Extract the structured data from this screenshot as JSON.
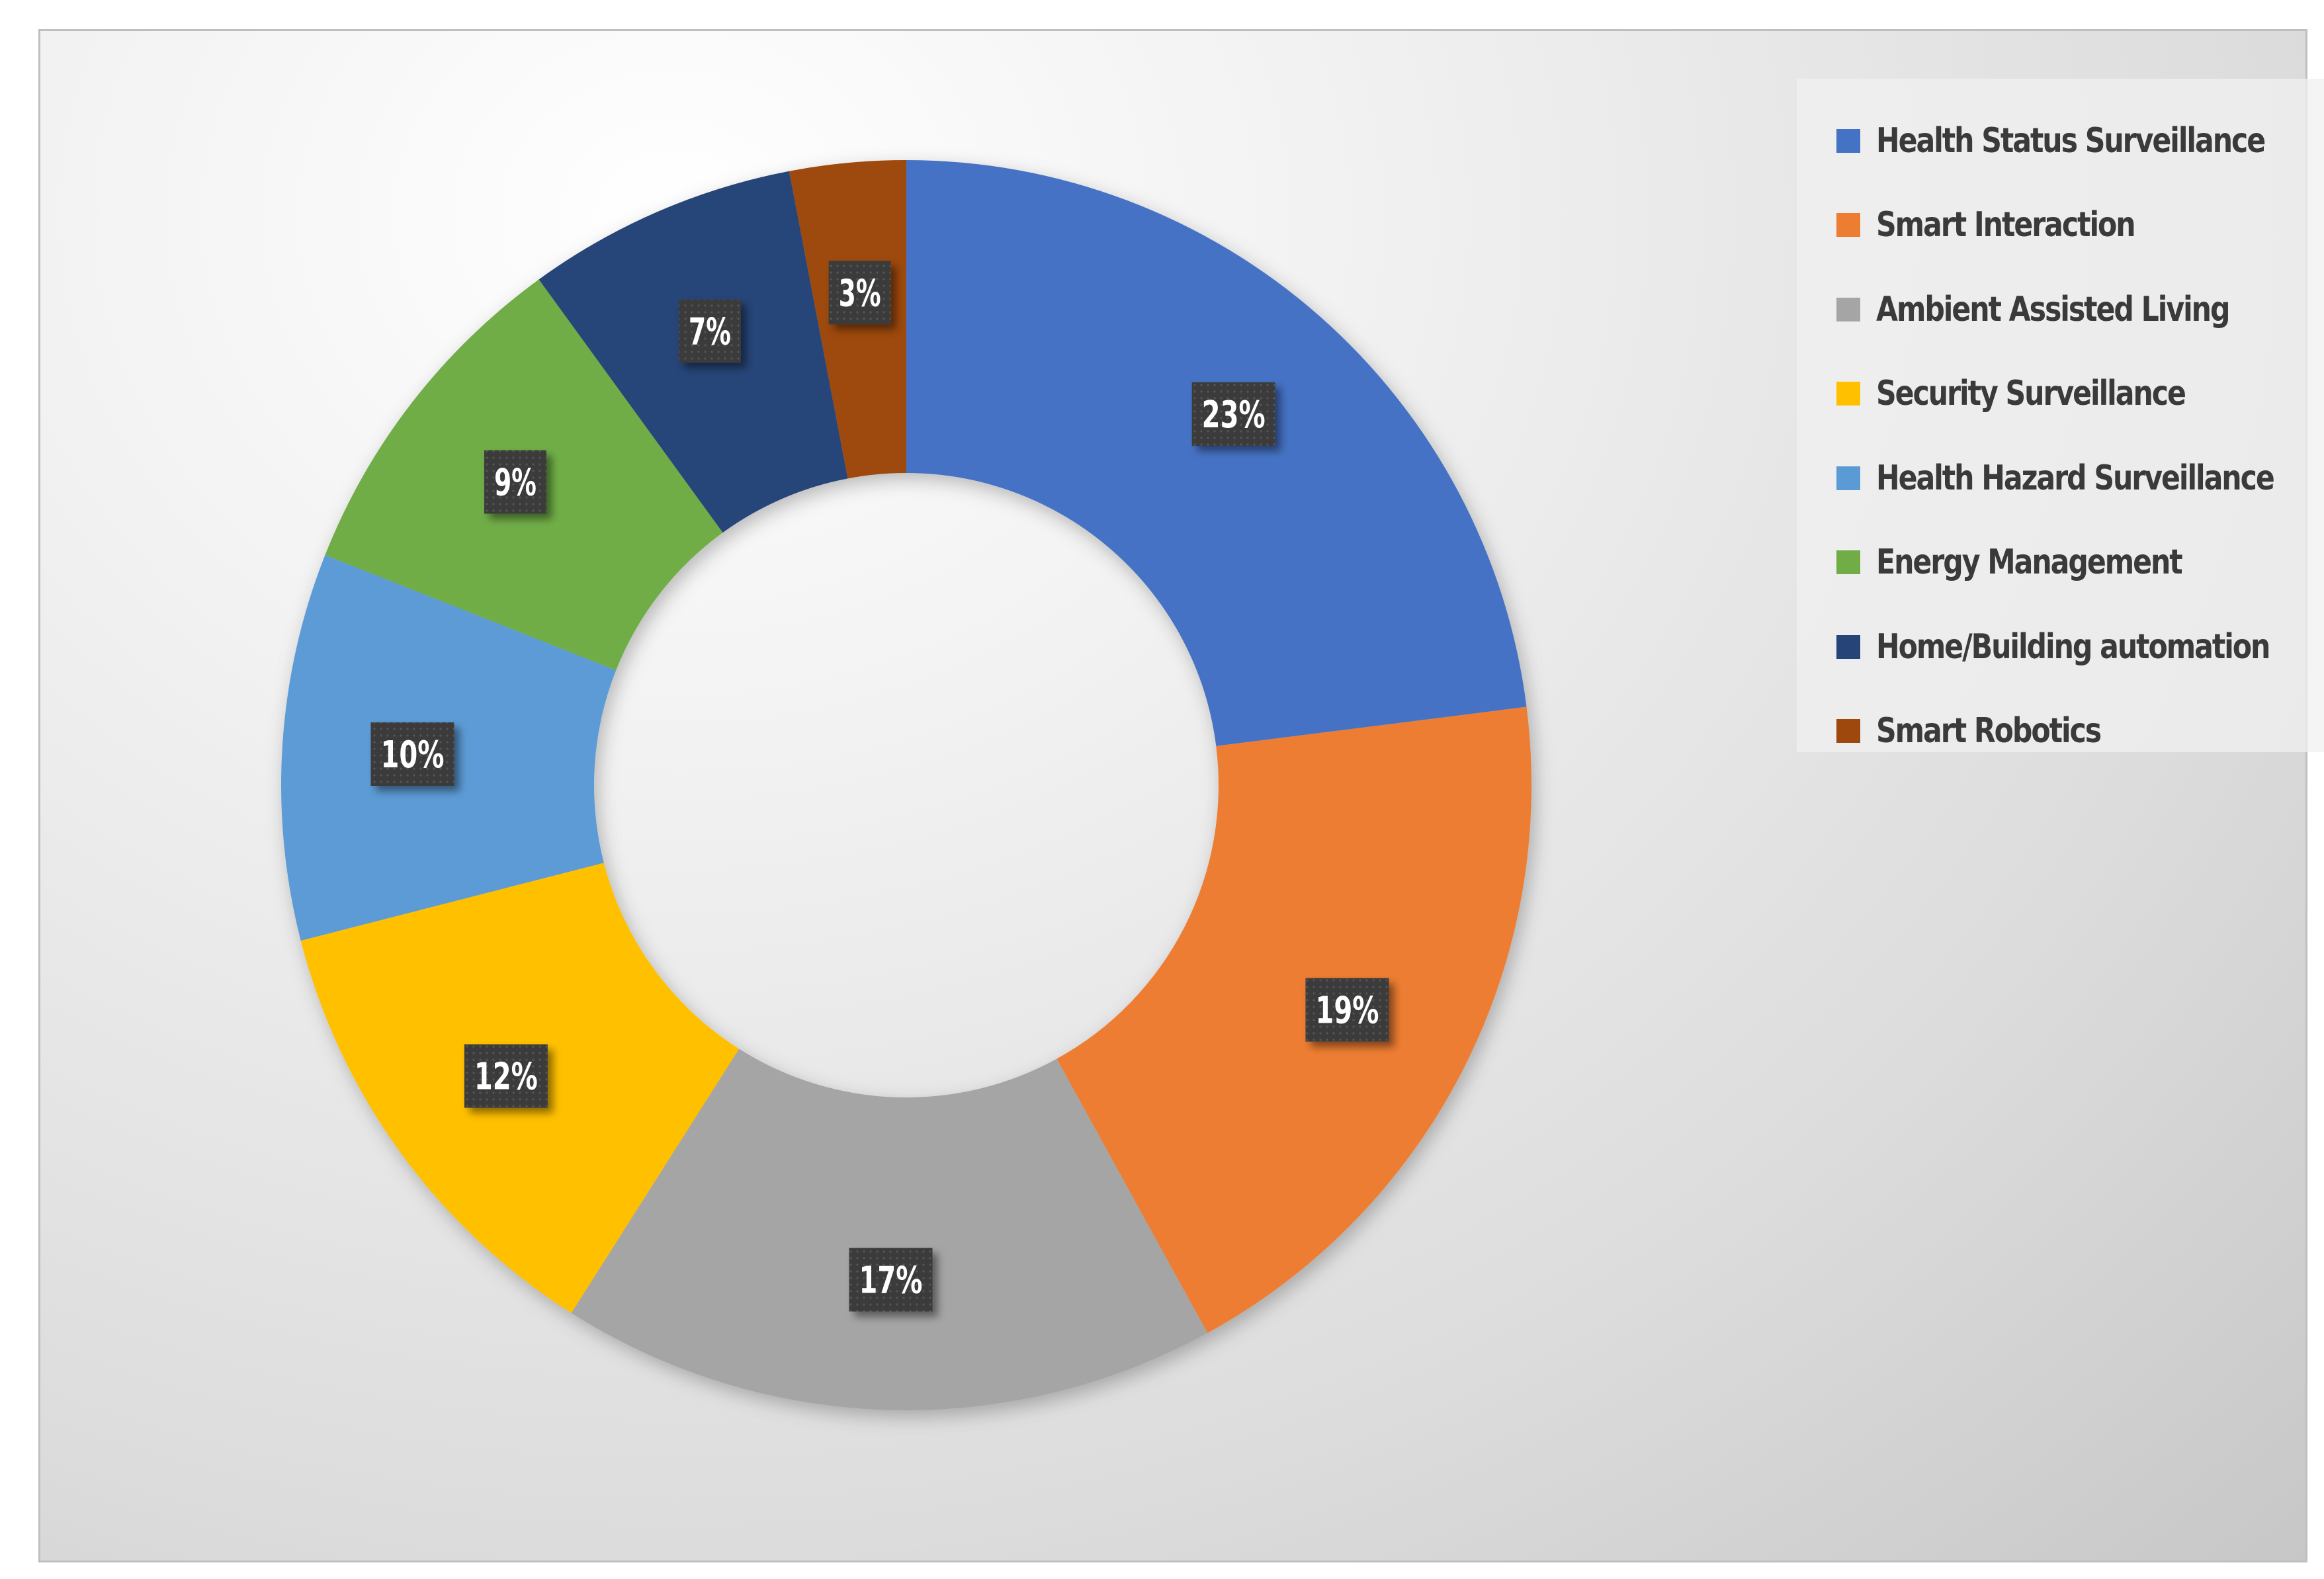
{
  "chart_data": {
    "type": "pie",
    "variant": "donut",
    "title": "",
    "categories": [
      "Health Status Surveillance",
      "Smart Interaction",
      "Ambient Assisted Living",
      "Security Surveillance",
      "Health Hazard Surveillance",
      "Energy Management",
      "Home/Building automation",
      "Smart Robotics"
    ],
    "values": [
      23,
      19,
      17,
      12,
      10,
      9,
      7,
      3
    ],
    "data_labels": [
      "23%",
      "19%",
      "17%",
      "12%",
      "10%",
      "9%",
      "7%",
      "3%"
    ],
    "colors": [
      "#4472C4",
      "#ED7D31",
      "#A5A5A5",
      "#FFC000",
      "#5B9BD5",
      "#70AD47",
      "#264478",
      "#9E480E"
    ],
    "legend_position": "top-right",
    "start_angle": "top, clockwise"
  }
}
